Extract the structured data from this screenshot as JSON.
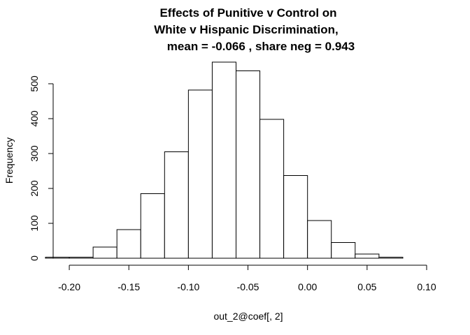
{
  "chart_data": {
    "type": "bar",
    "title_lines": [
      "Effects of Punitive v Control on",
      "White v Hispanic Discrimination,",
      "mean =  -0.066 , share neg = 0.943"
    ],
    "xlabel": "out_2@coef[, 2]",
    "ylabel": "Frequency",
    "bin_edges": [
      -0.22,
      -0.2,
      -0.18,
      -0.16,
      -0.14,
      -0.12,
      -0.1,
      -0.08,
      -0.06,
      -0.04,
      -0.02,
      0.0,
      0.02,
      0.04,
      0.06,
      0.08
    ],
    "values": [
      3,
      3,
      32,
      82,
      185,
      305,
      482,
      562,
      537,
      398,
      237,
      108,
      45,
      12,
      3
    ],
    "xlim": [
      -0.22,
      0.1
    ],
    "ylim": [
      0,
      562
    ],
    "x_ticks": [
      -0.2,
      -0.15,
      -0.1,
      -0.05,
      0.0,
      0.05,
      0.1
    ],
    "x_tick_labels": [
      "-0.20",
      "-0.15",
      "-0.10",
      "-0.05",
      "0.00",
      "0.05",
      "0.10"
    ],
    "y_ticks": [
      0,
      100,
      200,
      300,
      400,
      500
    ],
    "y_tick_labels": [
      "0",
      "100",
      "200",
      "300",
      "400",
      "500"
    ],
    "grid": false,
    "colors": {
      "bar_fill": "#ffffff",
      "bar_stroke": "#000000",
      "axis": "#000000"
    }
  }
}
